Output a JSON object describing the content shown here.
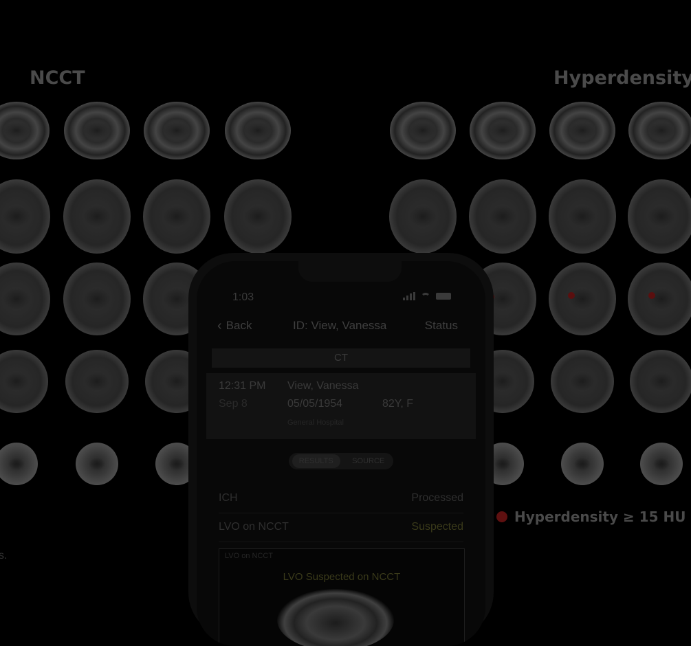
{
  "left_panel": {
    "title": "NCCT",
    "footnote": "s."
  },
  "right_panel": {
    "title": "Hyperdensity",
    "legend": {
      "label": "Hyperdensity  ≥ 15 HU =",
      "color": "#8b1a1a"
    }
  },
  "phone": {
    "status_bar": {
      "time": "1:03",
      "icons": [
        "signal-icon",
        "wifi-icon",
        "battery-icon"
      ]
    },
    "nav": {
      "back_label": "Back",
      "title": "ID: View, Vanessa",
      "status_label": "Status"
    },
    "modality": "CT",
    "patient": {
      "time": "12:31 PM",
      "date": "Sep 8",
      "name": "View, Vanessa",
      "dob": "05/05/1954",
      "age_sex": "82Y, F",
      "hospital": "General Hospital"
    },
    "segmented": {
      "results": "RESULTS",
      "source": "SOURCE"
    },
    "results": [
      {
        "label": "ICH",
        "value": "Processed"
      },
      {
        "label": "LVO on NCCT",
        "value": "Suspected"
      }
    ],
    "result_card": {
      "title": "LVO on NCCT",
      "headline": "LVO Suspected on NCCT"
    }
  }
}
